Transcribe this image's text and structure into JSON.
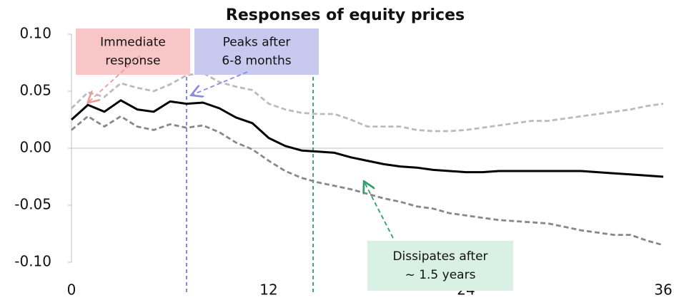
{
  "chart_data": {
    "type": "line",
    "title": "Responses of equity prices",
    "x": [
      0,
      1,
      2,
      3,
      4,
      5,
      6,
      7,
      8,
      9,
      10,
      11,
      12,
      13,
      14,
      15,
      16,
      17,
      18,
      19,
      20,
      21,
      22,
      23,
      24,
      25,
      26,
      27,
      28,
      29,
      30,
      31,
      32,
      33,
      34,
      35,
      36
    ],
    "series": [
      {
        "color": "#bbbbbb",
        "dashed": true,
        "values": [
          0.035,
          0.049,
          0.045,
          0.057,
          0.053,
          0.05,
          0.056,
          0.064,
          0.066,
          0.058,
          0.054,
          0.051,
          0.039,
          0.034,
          0.031,
          0.03,
          0.03,
          0.025,
          0.019,
          0.019,
          0.019,
          0.016,
          0.015,
          0.015,
          0.016,
          0.018,
          0.02,
          0.022,
          0.024,
          0.024,
          0.026,
          0.028,
          0.03,
          0.032,
          0.034,
          0.037,
          0.039
        ]
      },
      {
        "color": "#000000",
        "dashed": false,
        "values": [
          0.025,
          0.038,
          0.032,
          0.042,
          0.034,
          0.032,
          0.041,
          0.039,
          0.04,
          0.035,
          0.027,
          0.022,
          0.009,
          0.002,
          -0.002,
          -0.003,
          -0.004,
          -0.008,
          -0.011,
          -0.014,
          -0.016,
          -0.017,
          -0.019,
          -0.02,
          -0.021,
          -0.021,
          -0.02,
          -0.02,
          -0.02,
          -0.02,
          -0.02,
          -0.02,
          -0.021,
          -0.022,
          -0.023,
          -0.024,
          -0.025
        ]
      },
      {
        "color": "#888888",
        "dashed": true,
        "values": [
          0.016,
          0.028,
          0.019,
          0.028,
          0.019,
          0.016,
          0.021,
          0.018,
          0.02,
          0.014,
          0.005,
          -0.001,
          -0.011,
          -0.02,
          -0.026,
          -0.03,
          -0.033,
          -0.036,
          -0.04,
          -0.044,
          -0.047,
          -0.051,
          -0.053,
          -0.057,
          -0.059,
          -0.061,
          -0.063,
          -0.064,
          -0.065,
          -0.066,
          -0.069,
          -0.072,
          -0.074,
          -0.076,
          -0.076,
          -0.081,
          -0.085
        ]
      }
    ],
    "xlim": [
      0,
      36
    ],
    "xticks": [
      0,
      12,
      24,
      36
    ],
    "ylim": [
      -0.1,
      0.1
    ],
    "yticks": [
      {
        "value": -0.1,
        "label": "-0.10"
      },
      -0.05,
      {
        "value": 0,
        "label": "0.00"
      },
      0.05,
      {
        "value": 0.1,
        "label": "0.10"
      }
    ],
    "vlines": [
      {
        "x": 7,
        "color": "#7b7bd6"
      },
      {
        "x": 14.7,
        "color": "#2e9e6e"
      }
    ],
    "annotations": [
      {
        "lines": [
          "Immediate",
          "response"
        ],
        "fill": "#f8c6c6",
        "arrow": "#f09a9a"
      },
      {
        "lines": [
          "Peaks after",
          "6-8 months"
        ],
        "fill": "#c9c9f0",
        "arrow": "#8b8be0"
      },
      {
        "lines": [
          "Dissipates after",
          "~ 1.5 years"
        ],
        "fill": "#d9f1e5",
        "arrow": "#2e9e6e"
      }
    ]
  }
}
